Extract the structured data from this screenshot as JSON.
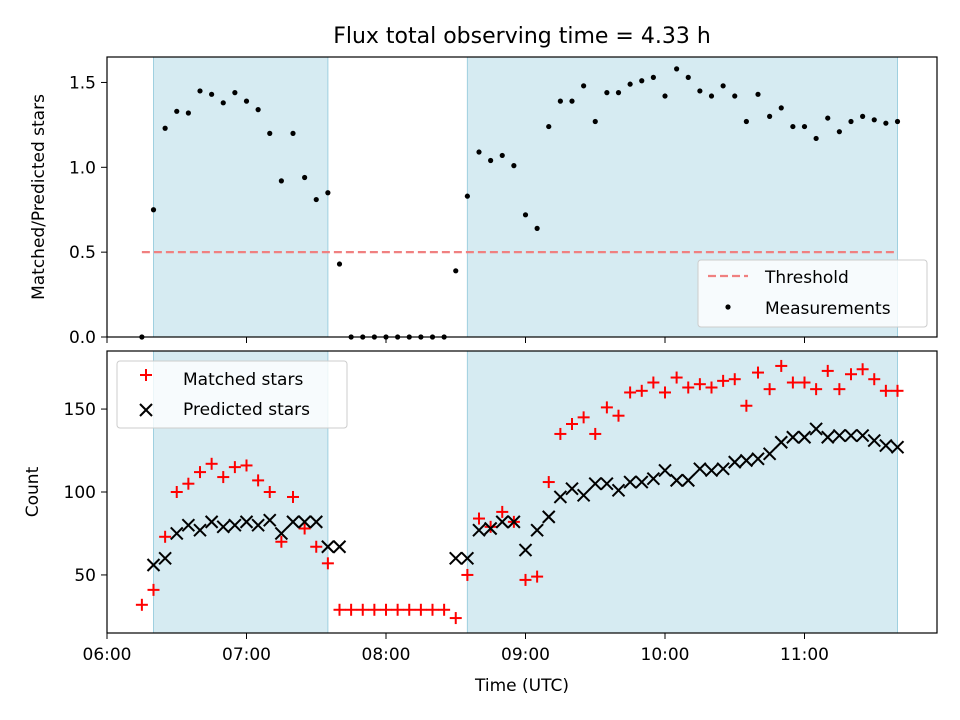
{
  "chart_data": [
    {
      "type": "scatter",
      "title": "Flux total observing time = 4.33 h",
      "ylabel": "Matched/Predicted stars",
      "xlabel": "",
      "xlim": [
        "06:00",
        "11:58"
      ],
      "ylim": [
        0,
        1.65
      ],
      "yticks": [
        0.0,
        0.5,
        1.0,
        1.5
      ],
      "ytick_labels": [
        "0.0",
        "0.5",
        "1.0",
        "1.5"
      ],
      "xticks": [
        "06:00",
        "07:00",
        "08:00",
        "09:00",
        "10:00",
        "11:00"
      ],
      "grid": false,
      "legend_position": "lower-right",
      "shaded_intervals": [
        [
          "06:20",
          "07:35"
        ],
        [
          "08:35",
          "11:40"
        ]
      ],
      "threshold": {
        "name": "Threshold",
        "y": 0.5,
        "x_range": [
          "06:15",
          "11:40"
        ],
        "color": "#f08080",
        "style": "dashed"
      },
      "series": [
        {
          "name": "Measurements",
          "marker": "dot",
          "color": "#000000",
          "x": [
            "06:15",
            "06:20",
            "06:25",
            "06:30",
            "06:35",
            "06:40",
            "06:45",
            "06:50",
            "06:55",
            "07:00",
            "07:05",
            "07:10",
            "07:15",
            "07:20",
            "07:25",
            "07:30",
            "07:35",
            "07:40",
            "07:45",
            "07:50",
            "07:55",
            "08:00",
            "08:05",
            "08:10",
            "08:15",
            "08:20",
            "08:25",
            "08:30",
            "08:35",
            "08:40",
            "08:45",
            "08:50",
            "08:55",
            "09:00",
            "09:05",
            "09:10",
            "09:15",
            "09:20",
            "09:25",
            "09:30",
            "09:35",
            "09:40",
            "09:45",
            "09:50",
            "09:55",
            "10:00",
            "10:05",
            "10:10",
            "10:15",
            "10:20",
            "10:25",
            "10:30",
            "10:35",
            "10:40",
            "10:45",
            "10:50",
            "10:55",
            "11:00",
            "11:05",
            "11:10",
            "11:15",
            "11:20",
            "11:25",
            "11:30",
            "11:35",
            "11:40"
          ],
          "y": [
            0.0,
            0.75,
            1.23,
            1.33,
            1.32,
            1.45,
            1.43,
            1.38,
            1.44,
            1.39,
            1.34,
            1.2,
            0.92,
            1.2,
            0.94,
            0.81,
            0.85,
            0.43,
            0.0,
            0.0,
            0.0,
            0.0,
            0.0,
            0.0,
            0.0,
            0.0,
            0.0,
            0.39,
            0.83,
            1.09,
            1.04,
            1.07,
            1.01,
            0.72,
            0.64,
            1.24,
            1.39,
            1.39,
            1.48,
            1.27,
            1.44,
            1.44,
            1.49,
            1.51,
            1.53,
            1.42,
            1.58,
            1.53,
            1.45,
            1.42,
            1.48,
            1.42,
            1.27,
            1.43,
            1.3,
            1.35,
            1.24,
            1.24,
            1.17,
            1.29,
            1.21,
            1.27,
            1.3,
            1.28,
            1.26,
            1.27
          ]
        }
      ]
    },
    {
      "type": "scatter",
      "title": "",
      "ylabel": "Count",
      "xlabel": "Time (UTC)",
      "xlim": [
        "06:00",
        "11:58"
      ],
      "ylim": [
        15,
        185
      ],
      "yticks": [
        50,
        100,
        150
      ],
      "ytick_labels": [
        "50",
        "100",
        "150"
      ],
      "xticks": [
        "06:00",
        "07:00",
        "08:00",
        "09:00",
        "10:00",
        "11:00"
      ],
      "grid": false,
      "legend_position": "upper-left",
      "shaded_intervals": [
        [
          "06:20",
          "07:35"
        ],
        [
          "08:35",
          "11:40"
        ]
      ],
      "series": [
        {
          "name": "Matched stars",
          "marker": "plus",
          "color": "#ff0000",
          "x": [
            "06:15",
            "06:20",
            "06:25",
            "06:30",
            "06:35",
            "06:40",
            "06:45",
            "06:50",
            "06:55",
            "07:00",
            "07:05",
            "07:10",
            "07:15",
            "07:20",
            "07:25",
            "07:30",
            "07:35",
            "07:40",
            "07:45",
            "07:50",
            "07:55",
            "08:00",
            "08:05",
            "08:10",
            "08:15",
            "08:20",
            "08:25",
            "08:30",
            "08:35",
            "08:40",
            "08:45",
            "08:50",
            "08:55",
            "09:00",
            "09:05",
            "09:10",
            "09:15",
            "09:20",
            "09:25",
            "09:30",
            "09:35",
            "09:40",
            "09:45",
            "09:50",
            "09:55",
            "10:00",
            "10:05",
            "10:10",
            "10:15",
            "10:20",
            "10:25",
            "10:30",
            "10:35",
            "10:40",
            "10:45",
            "10:50",
            "10:55",
            "11:00",
            "11:05",
            "11:10",
            "11:15",
            "11:20",
            "11:25",
            "11:30",
            "11:35",
            "11:40"
          ],
          "y": [
            32,
            41,
            73,
            100,
            105,
            112,
            117,
            109,
            115,
            116,
            107,
            100,
            70,
            97,
            78,
            67,
            57,
            29,
            29,
            29,
            29,
            29,
            29,
            29,
            29,
            29,
            29,
            24,
            50,
            84,
            79,
            88,
            82,
            47,
            49,
            106,
            135,
            141,
            145,
            135,
            151,
            146,
            160,
            161,
            166,
            160,
            169,
            163,
            165,
            163,
            167,
            168,
            152,
            172,
            162,
            176,
            166,
            166,
            162,
            173,
            162,
            171,
            174,
            168,
            161,
            161
          ]
        },
        {
          "name": "Predicted stars",
          "marker": "x",
          "color": "#000000",
          "x": [
            "06:20",
            "06:25",
            "06:30",
            "06:35",
            "06:40",
            "06:45",
            "06:50",
            "06:55",
            "07:00",
            "07:05",
            "07:10",
            "07:15",
            "07:20",
            "07:25",
            "07:30",
            "07:35",
            "07:40",
            "08:30",
            "08:35",
            "08:40",
            "08:45",
            "08:50",
            "08:55",
            "09:00",
            "09:05",
            "09:10",
            "09:15",
            "09:20",
            "09:25",
            "09:30",
            "09:35",
            "09:40",
            "09:45",
            "09:50",
            "09:55",
            "10:00",
            "10:05",
            "10:10",
            "10:15",
            "10:20",
            "10:25",
            "10:30",
            "10:35",
            "10:40",
            "10:45",
            "10:50",
            "10:55",
            "11:00",
            "11:05",
            "11:10",
            "11:15",
            "11:20",
            "11:25",
            "11:30",
            "11:35",
            "11:40"
          ],
          "y": [
            56,
            60,
            75,
            80,
            77,
            82,
            79,
            80,
            82,
            80,
            83,
            75,
            82,
            82,
            82,
            67,
            67,
            60,
            60,
            77,
            78,
            82,
            82,
            65,
            77,
            85,
            97,
            102,
            98,
            105,
            105,
            101,
            106,
            106,
            108,
            113,
            107,
            107,
            114,
            113,
            114,
            118,
            119,
            120,
            123,
            130,
            133,
            133,
            138,
            133,
            134,
            134,
            134,
            131,
            128,
            127
          ]
        }
      ]
    }
  ]
}
